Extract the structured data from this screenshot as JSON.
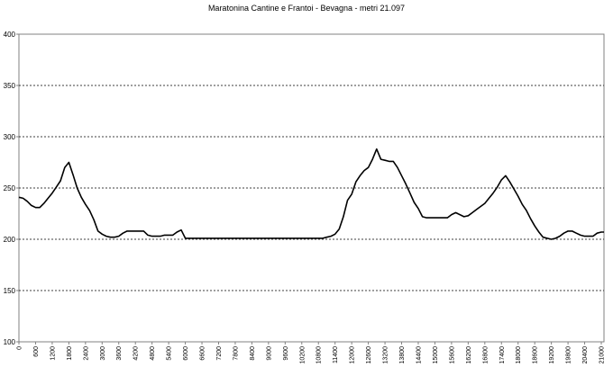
{
  "chart_data": {
    "type": "line",
    "title": "Maratonina Cantine e Frantoi - Bevagna - metri 21.097",
    "xlabel": "",
    "ylabel": "",
    "ylim": [
      100,
      400
    ],
    "xlim": [
      0,
      21097
    ],
    "grid": true,
    "legend": "none",
    "yticks": [
      "100",
      "150",
      "200",
      "250",
      "300",
      "350",
      "400"
    ],
    "xticks": [
      "0",
      "600",
      "1200",
      "1800",
      "2400",
      "3000",
      "3600",
      "4200",
      "4800",
      "5400",
      "6000",
      "6600",
      "7200",
      "7800",
      "8400",
      "9000",
      "9600",
      "10200",
      "10800",
      "11400",
      "12000",
      "12600",
      "13200",
      "13800",
      "14400",
      "15000",
      "15600",
      "16200",
      "16800",
      "17400",
      "18000",
      "18600",
      "19200",
      "19800",
      "20400",
      "21000"
    ],
    "series": [
      {
        "color": "#000000",
        "x": [
          0,
          150,
          300,
          450,
          600,
          750,
          900,
          1050,
          1200,
          1350,
          1500,
          1650,
          1800,
          1950,
          2100,
          2250,
          2400,
          2550,
          2700,
          2850,
          3000,
          3150,
          3300,
          3450,
          3600,
          3750,
          3900,
          4050,
          4200,
          4350,
          4500,
          4650,
          4800,
          4950,
          5100,
          5250,
          5400,
          5550,
          5700,
          5850,
          6000,
          6600,
          7200,
          7800,
          8400,
          9000,
          9600,
          10200,
          10500,
          10800,
          10950,
          11100,
          11250,
          11400,
          11550,
          11700,
          11850,
          12000,
          12150,
          12300,
          12450,
          12600,
          12750,
          12900,
          13050,
          13200,
          13350,
          13500,
          13650,
          13800,
          13950,
          14100,
          14250,
          14400,
          14550,
          14700,
          14850,
          15000,
          15150,
          15300,
          15450,
          15600,
          15750,
          15900,
          16050,
          16200,
          16350,
          16500,
          16650,
          16800,
          16950,
          17100,
          17250,
          17400,
          17550,
          17700,
          17850,
          18000,
          18150,
          18300,
          18450,
          18600,
          18750,
          18900,
          19050,
          19200,
          19350,
          19500,
          19650,
          19800,
          19950,
          20100,
          20250,
          20400,
          20550,
          20700,
          20850,
          21000,
          21097
        ],
        "y": [
          241,
          240,
          237,
          233,
          231,
          231,
          235,
          240,
          245,
          251,
          257,
          270,
          275,
          263,
          250,
          241,
          234,
          228,
          219,
          208,
          205,
          203,
          202,
          202,
          203,
          206,
          208,
          208,
          208,
          208,
          208,
          204,
          203,
          203,
          203,
          204,
          204,
          204,
          207,
          209,
          201,
          201,
          201,
          201,
          201,
          201,
          201,
          201,
          201,
          201,
          201,
          202,
          203,
          205,
          210,
          222,
          238,
          244,
          256,
          262,
          267,
          270,
          278,
          288,
          278,
          277,
          276,
          276,
          270,
          262,
          254,
          245,
          236,
          230,
          222,
          221,
          221,
          221,
          221,
          221,
          221,
          224,
          226,
          224,
          222,
          223,
          226,
          229,
          232,
          235,
          240,
          245,
          251,
          258,
          262,
          256,
          249,
          242,
          234,
          228,
          220,
          213,
          207,
          202,
          201,
          200,
          201,
          203,
          206,
          208,
          208,
          206,
          204,
          203,
          203,
          203,
          206,
          207,
          207
        ]
      }
    ]
  }
}
